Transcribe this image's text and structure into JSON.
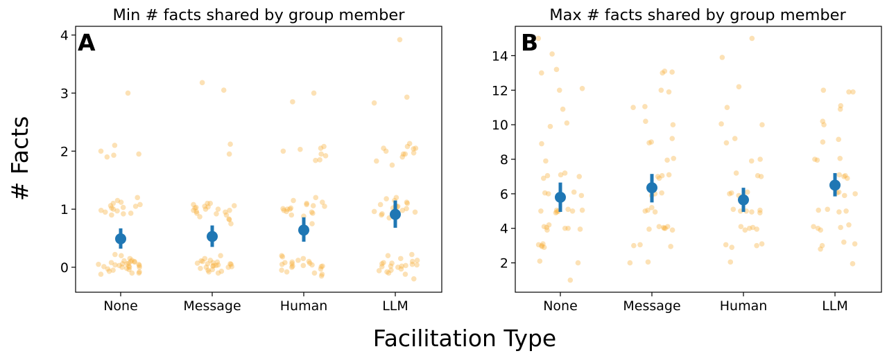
{
  "figure": {
    "xlabel": "Facilitation Type",
    "ylabel": "# Facts"
  },
  "colors": {
    "points": "#f8b13c",
    "mean": "#1f77b4",
    "axis": "#000000"
  },
  "chart_data": [
    {
      "type": "scatter",
      "panel_label": "A",
      "title": "Min # facts shared by group member",
      "categories": [
        "None",
        "Message",
        "Human",
        "LLM"
      ],
      "ylim": [
        -0.43,
        4.15
      ],
      "yticks": [
        0,
        1,
        2,
        3,
        4
      ],
      "means": [
        0.49,
        0.53,
        0.64,
        0.91
      ],
      "ci": [
        [
          0.32,
          0.67
        ],
        [
          0.35,
          0.72
        ],
        [
          0.44,
          0.86
        ],
        [
          0.68,
          1.15
        ]
      ],
      "points": [
        [
          0.05,
          0.03,
          0.08,
          -0.03,
          0.1,
          0.0,
          -0.05,
          0.12,
          -0.1,
          0.06,
          0.02,
          -0.02,
          0.09,
          -0.07,
          0.04,
          0.15,
          0.0,
          -0.12,
          0.07,
          0.03,
          -0.08,
          0.1,
          0.01,
          0.2,
          0.0,
          -0.04,
          0.06,
          0.11,
          -0.1,
          0.05,
          0.22,
          1.0,
          1.05,
          1.1,
          0.95,
          1.02,
          1.15,
          0.9,
          1.08,
          1.03,
          0.93,
          1.2,
          0.98,
          1.06,
          0.92,
          1.12,
          0.97,
          1.9,
          1.95,
          2.0,
          2.1,
          1.93,
          3.0
        ],
        [
          0.05,
          0.02,
          0.07,
          -0.05,
          0.1,
          0.0,
          -0.08,
          0.15,
          0.03,
          0.09,
          -0.02,
          0.06,
          0.12,
          0.0,
          -0.1,
          0.04,
          0.08,
          -0.04,
          0.2,
          0.01,
          0.06,
          -0.07,
          0.11,
          0.03,
          1.0,
          1.05,
          1.1,
          0.95,
          0.83,
          1.02,
          0.9,
          1.08,
          1.04,
          0.93,
          0.98,
          1.06,
          0.87,
          1.0,
          0.96,
          1.1,
          0.92,
          1.03,
          0.75,
          0.82,
          0.98,
          1.95,
          2.12,
          3.05,
          3.18
        ],
        [
          0.05,
          0.02,
          0.08,
          -0.05,
          0.1,
          0.0,
          -0.1,
          0.15,
          0.04,
          0.09,
          -0.03,
          0.06,
          0.12,
          0.01,
          -0.08,
          0.03,
          0.2,
          -0.12,
          0.07,
          0.02,
          0.18,
          -0.15,
          1.0,
          1.05,
          1.1,
          0.95,
          1.15,
          0.9,
          1.02,
          1.08,
          0.98,
          1.2,
          0.93,
          1.06,
          0.88,
          1.01,
          0.96,
          1.12,
          1.0,
          0.75,
          1.95,
          2.0,
          2.05,
          1.85,
          1.92,
          2.08,
          1.84,
          2.03,
          2.85,
          3.0
        ],
        [
          0.05,
          0.02,
          0.08,
          -0.05,
          0.1,
          0.0,
          -0.1,
          0.15,
          0.03,
          0.2,
          -0.12,
          0.07,
          0.01,
          -0.08,
          0.04,
          0.12,
          -0.03,
          0.22,
          -0.2,
          0.06,
          0.02,
          -0.06,
          1.0,
          1.05,
          1.1,
          0.95,
          1.15,
          0.9,
          1.02,
          1.08,
          0.98,
          1.2,
          0.93,
          1.06,
          1.12,
          0.85,
          1.01,
          0.96,
          1.18,
          1.04,
          0.92,
          1.95,
          2.0,
          2.05,
          1.9,
          1.76,
          1.83,
          2.08,
          2.13,
          1.97,
          2.04,
          1.95,
          2.05,
          2.83,
          2.93,
          3.92
        ]
      ]
    },
    {
      "type": "scatter",
      "panel_label": "B",
      "title": "Max # facts shared by group member",
      "categories": [
        "None",
        "Message",
        "Human",
        "LLM"
      ],
      "ylim": [
        0.3,
        15.7
      ],
      "yticks": [
        2,
        4,
        6,
        8,
        10,
        12,
        14
      ],
      "means": [
        5.8,
        6.35,
        5.65,
        6.5
      ],
      "ci": [
        [
          4.95,
          6.65
        ],
        [
          5.5,
          7.15
        ],
        [
          4.95,
          6.35
        ],
        [
          5.85,
          7.2
        ]
      ],
      "points": [
        [
          1.0,
          2.0,
          2.1,
          2.9,
          3.0,
          3.1,
          2.95,
          3.05,
          4.0,
          3.95,
          4.05,
          4.1,
          3.9,
          4.0,
          4.2,
          5.0,
          5.05,
          4.95,
          5.1,
          5.0,
          4.9,
          5.05,
          5.0,
          6.0,
          6.1,
          5.9,
          6.05,
          7.0,
          7.1,
          6.9,
          7.05,
          7.2,
          7.9,
          8.9,
          9.9,
          10.1,
          10.9,
          12.0,
          12.1,
          13.0,
          13.2,
          14.1,
          15.0
        ],
        [
          2.0,
          2.05,
          3.0,
          3.05,
          2.95,
          4.0,
          4.05,
          3.95,
          4.1,
          3.9,
          4.0,
          4.1,
          4.95,
          5.0,
          5.05,
          5.2,
          5.9,
          6.0,
          6.05,
          6.9,
          7.0,
          7.05,
          7.1,
          7.95,
          8.05,
          8.95,
          9.0,
          9.2,
          10.0,
          10.2,
          11.0,
          11.05,
          11.9,
          12.0,
          13.0,
          13.05,
          13.1
        ],
        [
          2.05,
          2.9,
          3.0,
          3.05,
          3.1,
          3.95,
          4.0,
          4.05,
          3.9,
          4.1,
          4.9,
          5.0,
          5.05,
          5.1,
          4.95,
          5.0,
          5.9,
          6.0,
          6.1,
          6.05,
          7.0,
          7.05,
          7.2,
          7.9,
          8.0,
          8.95,
          9.2,
          10.0,
          10.05,
          11.0,
          12.2,
          13.9,
          15.0
        ],
        [
          1.95,
          2.8,
          3.0,
          3.1,
          3.2,
          3.9,
          4.0,
          4.05,
          4.1,
          4.2,
          4.95,
          5.0,
          5.05,
          5.1,
          5.9,
          6.0,
          6.05,
          6.1,
          6.9,
          7.0,
          7.05,
          7.1,
          7.95,
          8.0,
          8.05,
          9.0,
          9.15,
          10.0,
          10.2,
          10.9,
          11.1,
          11.9,
          12.0,
          11.9
        ]
      ]
    }
  ]
}
